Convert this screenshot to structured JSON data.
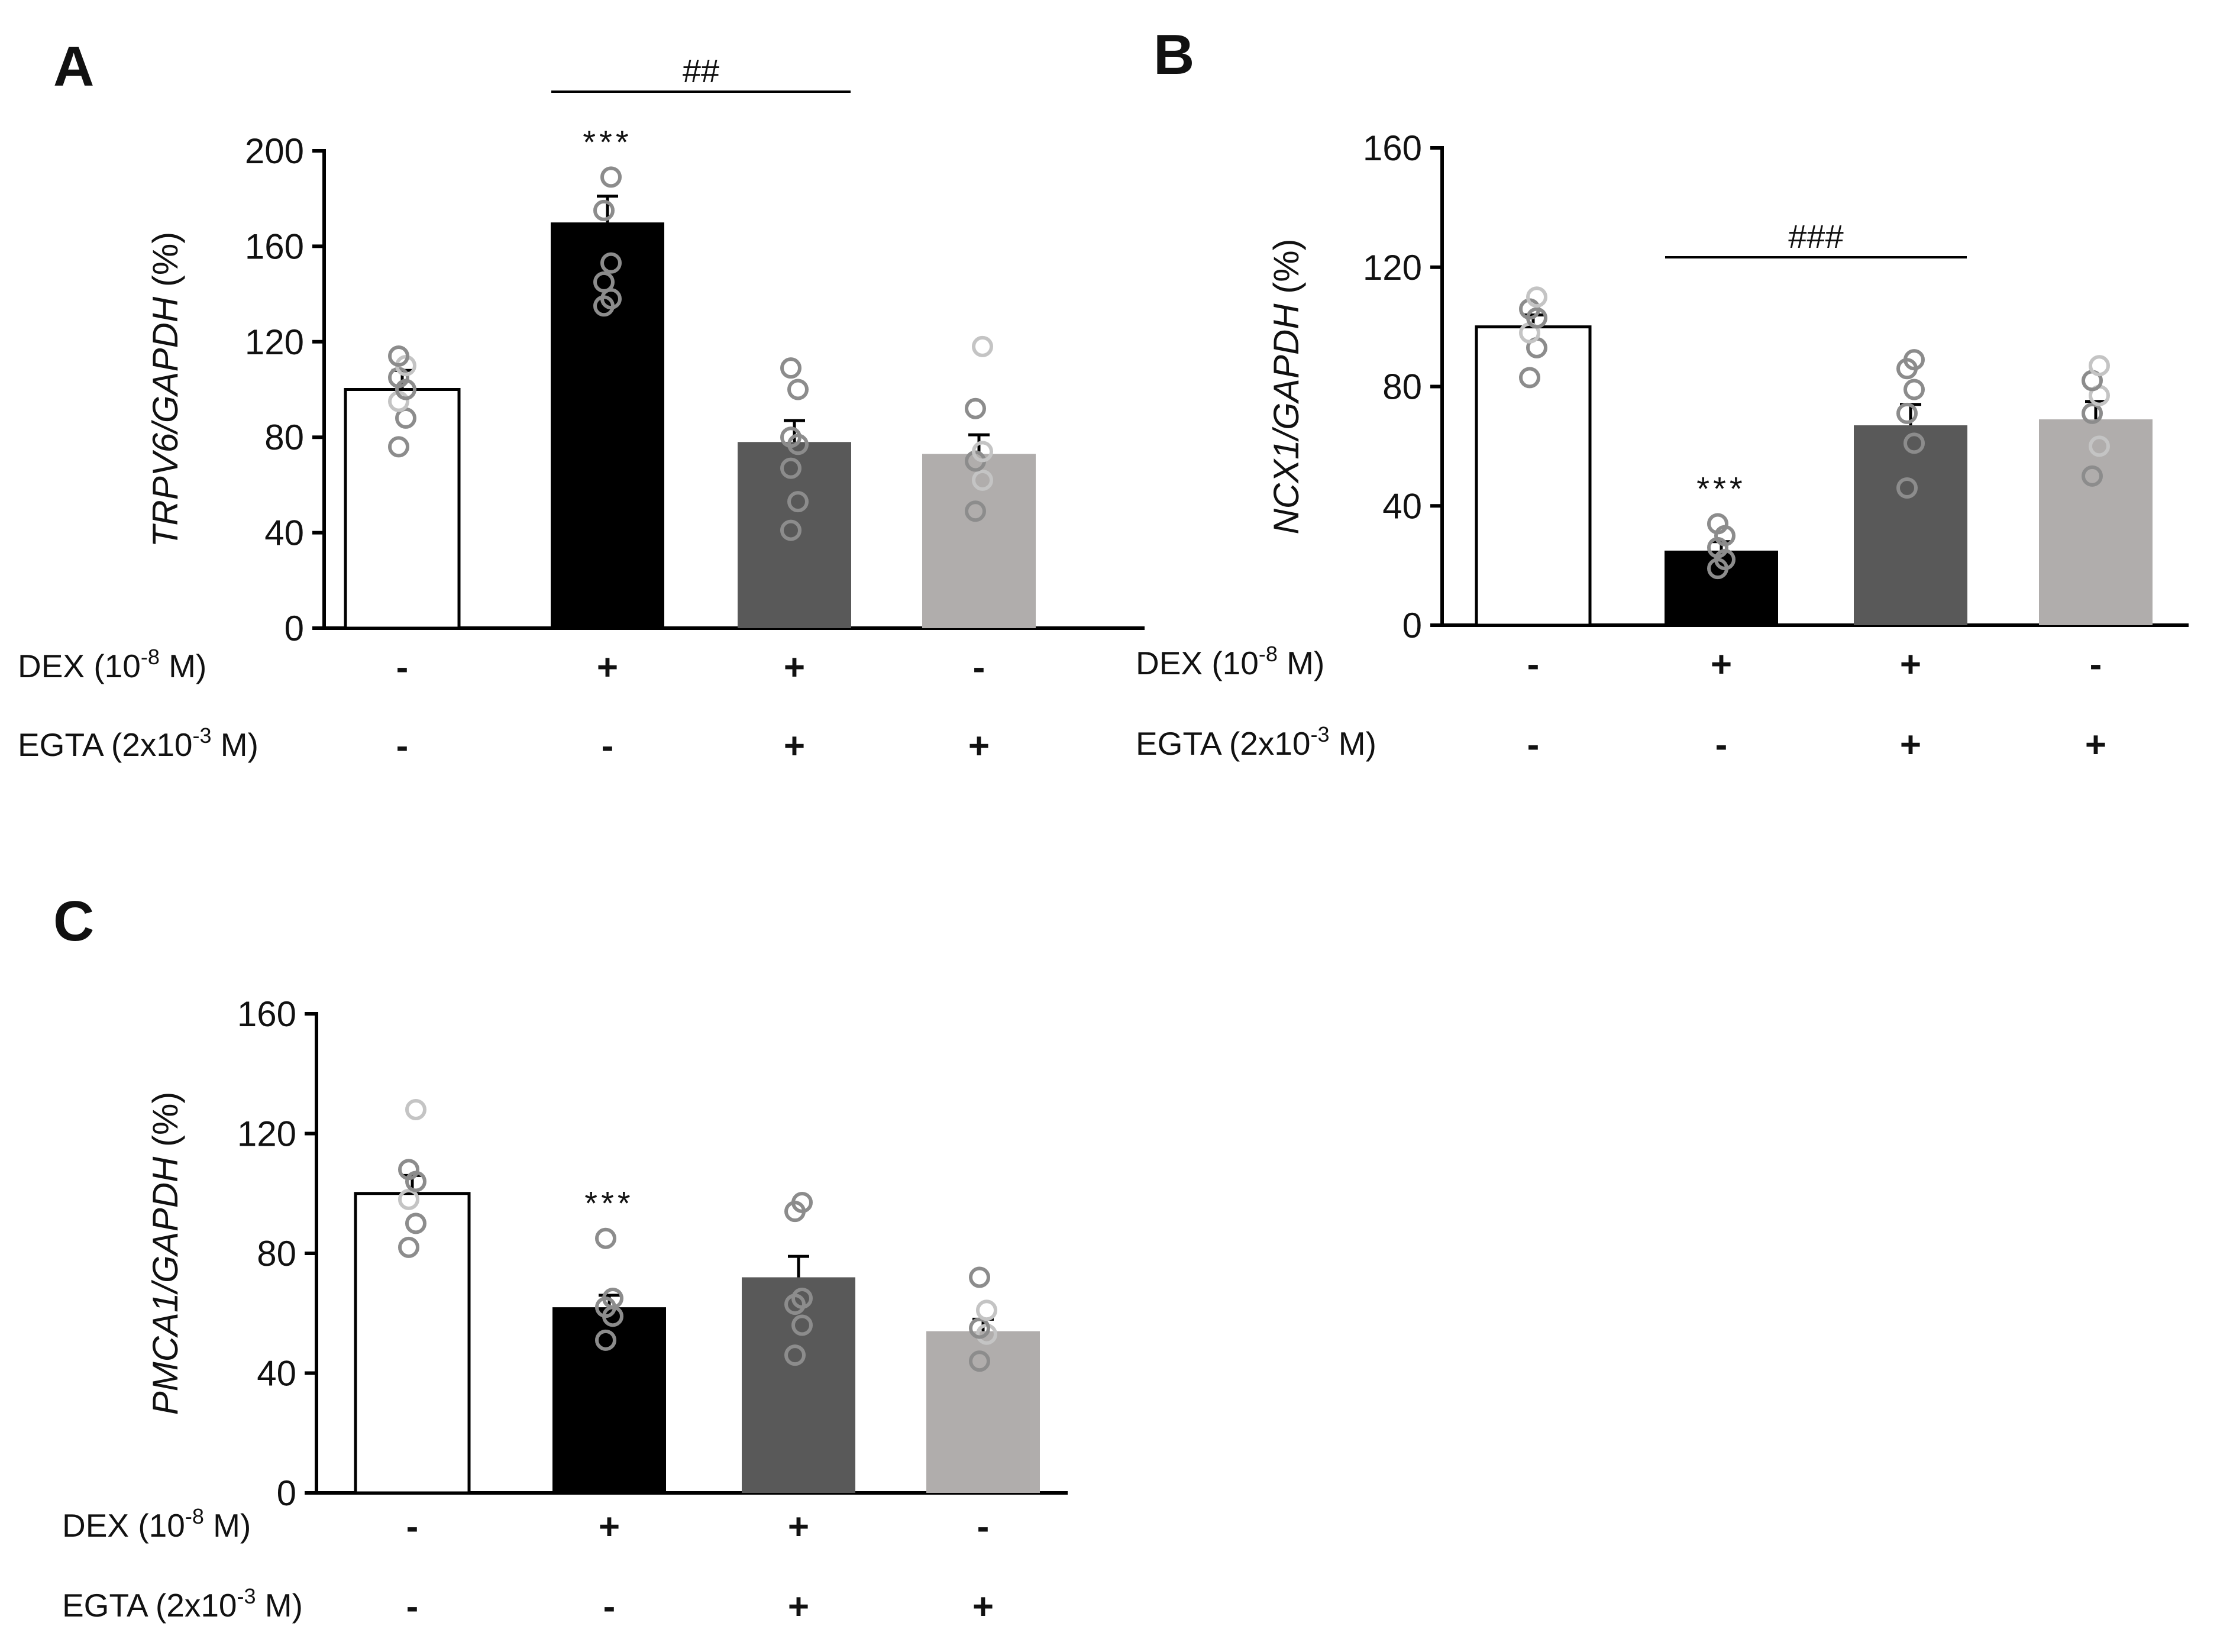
{
  "figure": {
    "colors": {
      "ctrl": "#ffffff",
      "dex": "#000000",
      "dex_egta": "#595959",
      "egta": "#b0adac",
      "point": "#8c8c8c",
      "point_light": "#c4c4c4"
    },
    "conditions": {
      "dex_label": {
        "prefix": "DEX (10",
        "sup": "-8",
        "suffix": " M)"
      },
      "egta_label": {
        "prefix": "EGTA (2x10",
        "sup": "-3",
        "suffix": " M)"
      },
      "dex": [
        "-",
        "+",
        "+",
        "-"
      ],
      "egta": [
        "-",
        "-",
        "+",
        "+"
      ]
    }
  },
  "chart_data": [
    {
      "panel": "A",
      "type": "bar",
      "ylabel": {
        "gene": "TRPV6/GAPDH",
        "unit": " (%)"
      },
      "ylim": [
        0,
        200
      ],
      "yticks": [
        0,
        40,
        80,
        120,
        160,
        200
      ],
      "categories": [
        "ctrl",
        "dex",
        "dex_egta",
        "egta"
      ],
      "values": [
        100,
        170,
        78,
        73
      ],
      "errors": [
        8,
        11,
        9,
        8
      ],
      "points": [
        [
          76,
          88,
          95,
          100,
          105,
          110,
          114
        ],
        [
          135,
          138,
          145,
          153,
          175,
          189
        ],
        [
          41,
          53,
          67,
          77,
          80,
          100,
          109
        ],
        [
          49,
          62,
          70,
          74,
          92,
          118
        ]
      ],
      "significance": [
        {
          "text": "***",
          "bar": 1
        }
      ],
      "brackets": [
        {
          "text": "##",
          "from": 1,
          "to": 2
        }
      ]
    },
    {
      "panel": "B",
      "type": "bar",
      "ylabel": {
        "gene": "NCX1/GAPDH",
        "unit": " (%)"
      },
      "ylim": [
        0,
        160
      ],
      "yticks": [
        0,
        40,
        80,
        120,
        160
      ],
      "categories": [
        "ctrl",
        "dex",
        "dex_egta",
        "egta"
      ],
      "values": [
        100,
        25,
        67,
        69
      ],
      "errors": [
        4,
        3,
        7,
        6
      ],
      "points": [
        [
          83,
          93,
          98,
          103,
          106,
          110
        ],
        [
          19,
          22,
          26,
          30,
          34
        ],
        [
          46,
          61,
          71,
          79,
          86,
          89
        ],
        [
          50,
          60,
          71,
          77,
          82,
          87
        ]
      ],
      "significance": [
        {
          "text": "***",
          "bar": 1
        }
      ],
      "brackets": [
        {
          "text": "###",
          "from": 1,
          "to": 2
        }
      ]
    },
    {
      "panel": "C",
      "type": "bar",
      "ylabel": {
        "gene": "PMCA1/GAPDH",
        "unit": " (%)"
      },
      "ylim": [
        0,
        160
      ],
      "yticks": [
        0,
        40,
        80,
        120,
        160
      ],
      "categories": [
        "ctrl",
        "dex",
        "dex_egta",
        "egta"
      ],
      "values": [
        100,
        62,
        72,
        54
      ],
      "errors": [
        6,
        4,
        7,
        4
      ],
      "points": [
        [
          82,
          90,
          98,
          104,
          108,
          128
        ],
        [
          51,
          59,
          62,
          65,
          85
        ],
        [
          46,
          56,
          63,
          65,
          94,
          97
        ],
        [
          44,
          53,
          55,
          61,
          72
        ]
      ],
      "significance": [
        {
          "text": "***",
          "bar": 1
        }
      ],
      "brackets": []
    }
  ]
}
